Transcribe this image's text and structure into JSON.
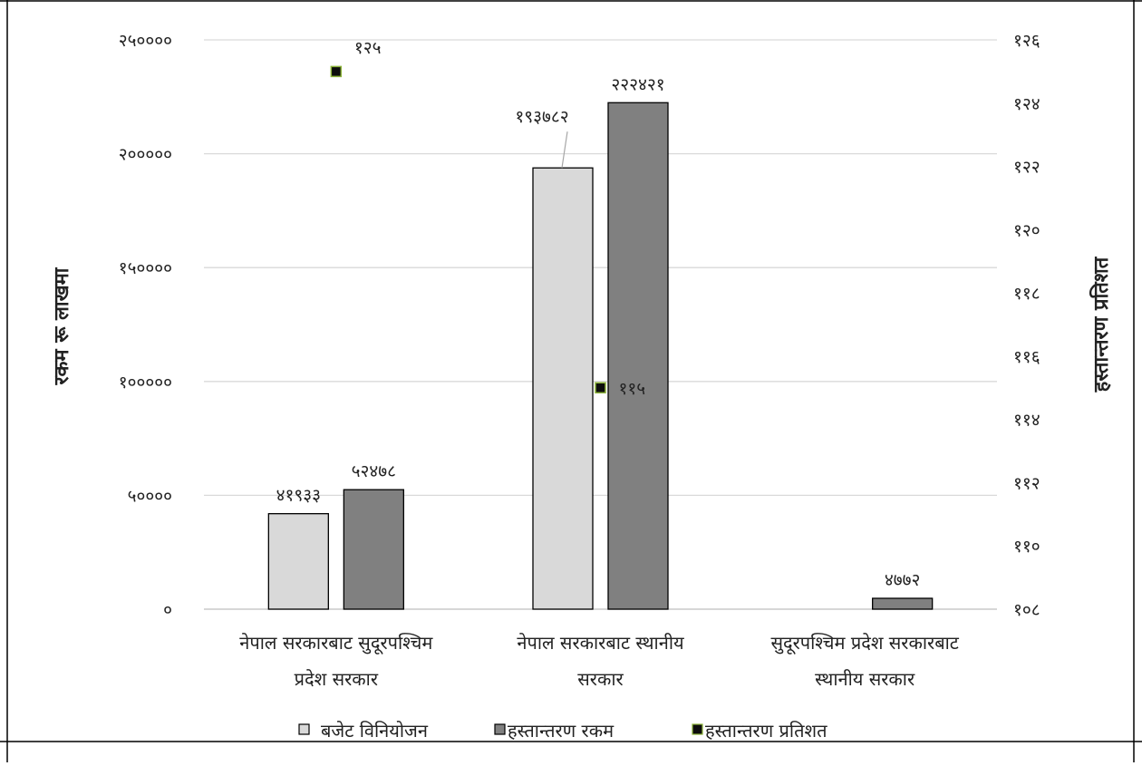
{
  "chart_data": {
    "type": "bar",
    "categories": [
      [
        "नेपाल सरकारबाट सुदूरपश्चिम",
        "प्रदेश सरकार"
      ],
      [
        "नेपाल सरकारबाट स्थानीय",
        "सरकार"
      ],
      [
        "सुदूरपश्चिम प्रदेश सरकारबाट",
        "स्थानीय सरकार"
      ]
    ],
    "series": [
      {
        "name": "बजेट विनियोजन",
        "kind": "bar",
        "axis": "left",
        "color": "#d9d9d9",
        "values": [
          41933,
          193782,
          null
        ],
        "labels": [
          "४१९३३",
          "१९३७८२",
          ""
        ]
      },
      {
        "name": "हस्तान्तरण रकम",
        "kind": "bar",
        "axis": "left",
        "color": "#808080",
        "values": [
          52478,
          222421,
          4772
        ],
        "labels": [
          "५२४७८",
          "२२२४२१",
          "४७७२"
        ]
      },
      {
        "name": "हस्तान्तरण प्रतिशत",
        "kind": "marker",
        "axis": "right",
        "color": "#0d0d0d",
        "edge": "#8cb33a",
        "values": [
          125,
          115,
          null
        ],
        "labels": [
          "१२५",
          "११५",
          ""
        ]
      }
    ],
    "ylabel": "रकम रू लाखमा",
    "y2label": "हस्तान्तरण प्रतिशत",
    "ylim": [
      0,
      250000
    ],
    "y2lim": [
      108,
      126
    ],
    "yticks": [
      {
        "v": 0,
        "t": "०"
      },
      {
        "v": 50000,
        "t": "५००००"
      },
      {
        "v": 100000,
        "t": "१०००००"
      },
      {
        "v": 150000,
        "t": "१५००००"
      },
      {
        "v": 200000,
        "t": "२०००००"
      },
      {
        "v": 250000,
        "t": "२५००००"
      }
    ],
    "y2ticks": [
      {
        "v": 108,
        "t": "१०८"
      },
      {
        "v": 110,
        "t": "११०"
      },
      {
        "v": 112,
        "t": "११२"
      },
      {
        "v": 114,
        "t": "११४"
      },
      {
        "v": 116,
        "t": "११६"
      },
      {
        "v": 118,
        "t": "११८"
      },
      {
        "v": 120,
        "t": "१२०"
      },
      {
        "v": 122,
        "t": "१२२"
      },
      {
        "v": 124,
        "t": "१२४"
      },
      {
        "v": 126,
        "t": "१२६"
      }
    ],
    "grid": true,
    "legend_position": "bottom"
  }
}
